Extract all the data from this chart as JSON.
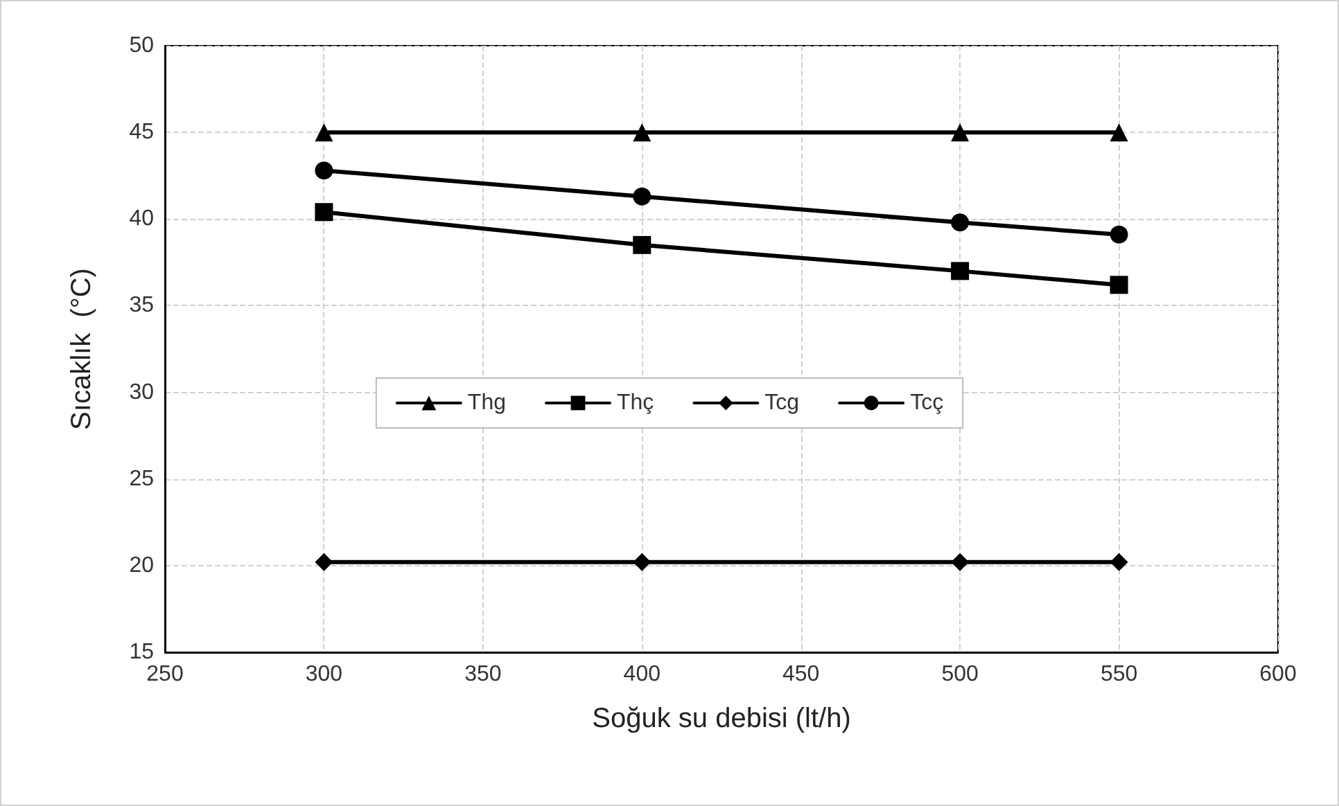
{
  "chart_data": {
    "type": "line",
    "xlabel": "Soğuk su debisi (lt/h)",
    "ylabel": "Sıcaklık  (°C)",
    "x": [
      300,
      400,
      500,
      550
    ],
    "series": [
      {
        "name": "Thg",
        "color": "#000000",
        "marker": "triangle",
        "values": [
          45,
          45,
          45,
          45
        ]
      },
      {
        "name": "Thç",
        "color": "#000000",
        "marker": "square",
        "values": [
          40.4,
          38.5,
          37.0,
          36.2
        ]
      },
      {
        "name": "Tcg",
        "color": "#000000",
        "marker": "diamond",
        "values": [
          20.2,
          20.2,
          20.2,
          20.2
        ]
      },
      {
        "name": "Tcç",
        "color": "#000000",
        "marker": "circle",
        "values": [
          42.8,
          41.3,
          39.8,
          39.1
        ]
      }
    ],
    "xlim": [
      250,
      600
    ],
    "xticks": [
      250,
      300,
      350,
      400,
      450,
      500,
      550,
      600
    ],
    "ylim": [
      15,
      50
    ],
    "yticks": [
      15,
      20,
      25,
      30,
      35,
      40,
      45,
      50
    ],
    "grid": true,
    "legend": "center",
    "line_style": "solid"
  }
}
